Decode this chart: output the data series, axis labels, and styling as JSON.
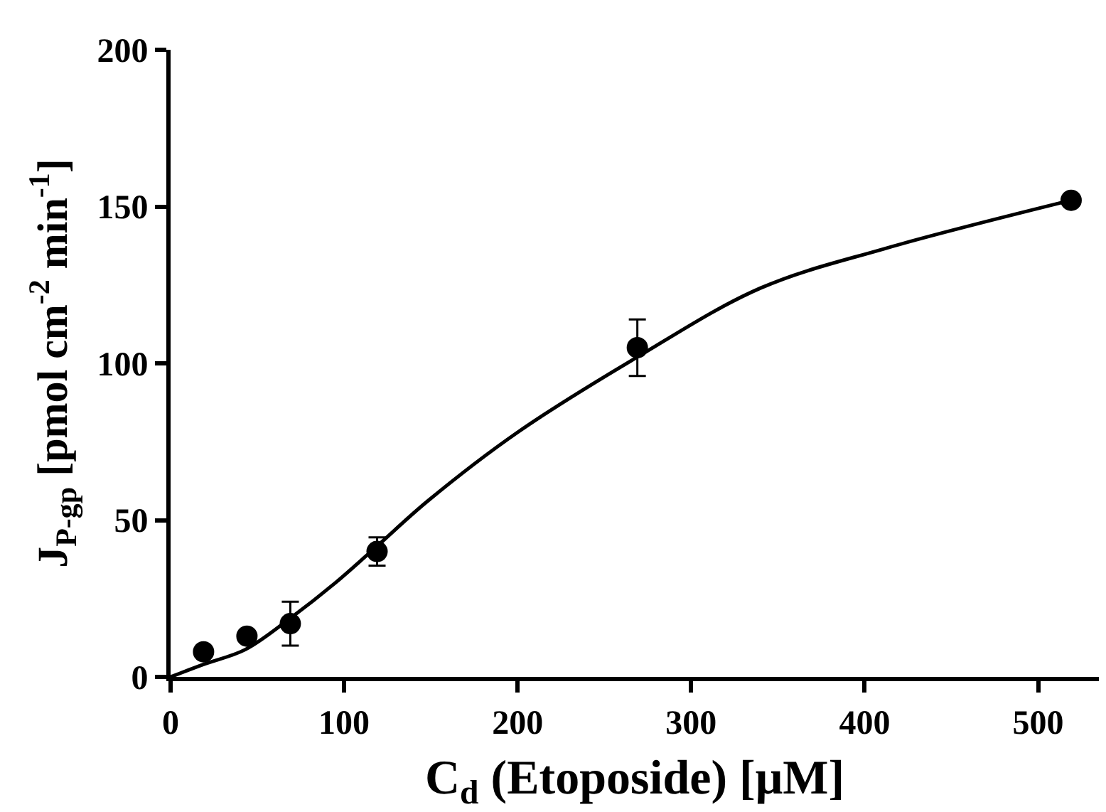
{
  "chart_data": {
    "type": "scatter",
    "xlabel": "C$_{d}$ (Etoposide) [μM]",
    "ylabel": "J$_{P-gp}$ [pmol cm$^{-2}$ min$^{-1}$]",
    "xlim": [
      0,
      535
    ],
    "ylim": [
      0,
      200
    ],
    "xticks": [
      0,
      100,
      200,
      300,
      400,
      500
    ],
    "yticks": [
      0,
      50,
      100,
      150,
      200
    ],
    "series": [
      {
        "color": "#000000",
        "marker": "circle",
        "x": [
          19,
          44,
          69,
          119,
          269,
          519
        ],
        "values": [
          8,
          13,
          17,
          40,
          105,
          152
        ],
        "errors": [
          null,
          null,
          7,
          4.5,
          9,
          null
        ]
      },
      {
        "type": "line",
        "color": "#000000",
        "marker": "none",
        "line_style": "solid",
        "x": [
          0,
          19,
          43,
          69,
          95,
          119,
          148,
          200,
          269,
          340,
          411,
          519
        ],
        "values": [
          0,
          4,
          8.7,
          18.7,
          30,
          41.7,
          56,
          78,
          102,
          124,
          136.5,
          152
        ]
      }
    ]
  }
}
